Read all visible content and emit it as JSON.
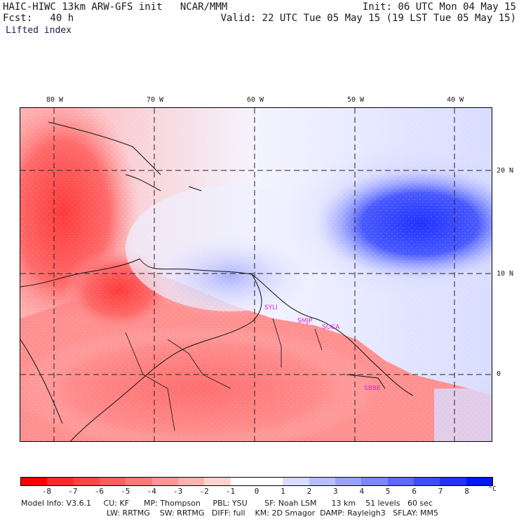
{
  "header": {
    "model_line": "HAIC-HIWC 13km ARW-GFS init   NCAR/MMM",
    "init": "Init: 06 UTC Mon 04 May 15",
    "fcst": "Fcst:   40 h",
    "valid": "Valid: 22 UTC Tue 05 May 15 (19 LST Tue 05 May 15)",
    "field": "Lifted index"
  },
  "map": {
    "lon_labels": [
      "80 W",
      "70 W",
      "60 W",
      "50 W",
      "40 W"
    ],
    "lat_labels": [
      "20 N",
      "10 N",
      "0"
    ],
    "stations": [
      "SYLI",
      "SMJP",
      "SOCA",
      "SBBE"
    ],
    "station_color": "#e020e0"
  },
  "colorbar": {
    "ticks": [
      "-8",
      "-7",
      "-6",
      "-5",
      "-4",
      "-3",
      "-2",
      "-1",
      "0",
      "1",
      "2",
      "3",
      "4",
      "5",
      "6",
      "7",
      "8"
    ],
    "unit": "°C",
    "colors": [
      "#ff0000",
      "#ff2b2b",
      "#ff4444",
      "#ff5e5e",
      "#ff7878",
      "#ff9696",
      "#ffb2b2",
      "#ffd2d2",
      "#ffffff",
      "#ffffff",
      "#d9dcff",
      "#b7bdff",
      "#9aa2ff",
      "#7b86ff",
      "#5d69ff",
      "#3e4dff",
      "#2232ff",
      "#0018ff"
    ]
  },
  "footer": {
    "line1": "Model Info: V3.6.1     CU: KF      MP: Thompson     PBL: YSU       SF: Noah LSM      13 km    51 levels   60 sec",
    "line2": "LW: RRTMG    SW: RRTMG   DIFF: full    KM: 2D Smagor  DAMP: Rayleigh3   SFLAY: MM5"
  }
}
